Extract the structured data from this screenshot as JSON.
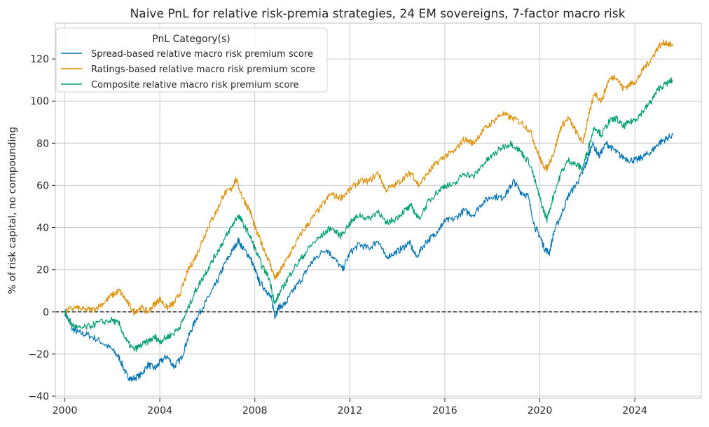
{
  "chart_data": {
    "type": "line",
    "title": "Naive PnL for relative risk-premia strategies, 24 EM sovereigns, 7-factor macro risk",
    "xlabel": "",
    "ylabel": "% of risk capital, no compounding",
    "xlim": [
      1999.6,
      2026.8
    ],
    "ylim": [
      -41,
      137
    ],
    "xticks": [
      2000,
      2004,
      2008,
      2012,
      2016,
      2020,
      2024
    ],
    "xtick_labels": [
      "2000",
      "2004",
      "2008",
      "2012",
      "2016",
      "2020",
      "2024"
    ],
    "yticks": [
      -40,
      -20,
      0,
      20,
      40,
      60,
      80,
      100,
      120
    ],
    "ytick_labels": [
      "−40",
      "−20",
      "0",
      "20",
      "40",
      "60",
      "80",
      "100",
      "120"
    ],
    "grid": true,
    "zero_line": true,
    "legend": {
      "title": "PnL Category(s)",
      "placement": "top-left"
    },
    "series": [
      {
        "name": "Spread-based relative macro risk premium score",
        "color": "#0173b2",
        "points": [
          [
            2000.0,
            0
          ],
          [
            2000.3,
            -8
          ],
          [
            2000.6,
            -10
          ],
          [
            2001.0,
            -11
          ],
          [
            2001.5,
            -14
          ],
          [
            2002.0,
            -18
          ],
          [
            2002.3,
            -22
          ],
          [
            2002.6,
            -30
          ],
          [
            2002.8,
            -32
          ],
          [
            2003.2,
            -30
          ],
          [
            2003.5,
            -25
          ],
          [
            2003.8,
            -27
          ],
          [
            2004.0,
            -24
          ],
          [
            2004.3,
            -21
          ],
          [
            2004.6,
            -26
          ],
          [
            2004.9,
            -22
          ],
          [
            2005.2,
            -12
          ],
          [
            2005.5,
            -4
          ],
          [
            2005.8,
            2
          ],
          [
            2006.1,
            8
          ],
          [
            2006.4,
            14
          ],
          [
            2006.7,
            22
          ],
          [
            2007.0,
            28
          ],
          [
            2007.3,
            34
          ],
          [
            2007.5,
            30
          ],
          [
            2007.8,
            26
          ],
          [
            2008.0,
            20
          ],
          [
            2008.2,
            14
          ],
          [
            2008.5,
            10
          ],
          [
            2008.7,
            6
          ],
          [
            2008.85,
            -2
          ],
          [
            2009.0,
            2
          ],
          [
            2009.3,
            4
          ],
          [
            2009.6,
            10
          ],
          [
            2010.0,
            16
          ],
          [
            2010.3,
            22
          ],
          [
            2010.6,
            26
          ],
          [
            2011.0,
            30
          ],
          [
            2011.3,
            26
          ],
          [
            2011.7,
            20
          ],
          [
            2012.0,
            28
          ],
          [
            2012.4,
            32
          ],
          [
            2012.8,
            30
          ],
          [
            2013.2,
            34
          ],
          [
            2013.5,
            26
          ],
          [
            2013.9,
            28
          ],
          [
            2014.2,
            30
          ],
          [
            2014.5,
            33
          ],
          [
            2014.8,
            26
          ],
          [
            2015.2,
            33
          ],
          [
            2015.5,
            36
          ],
          [
            2015.8,
            40
          ],
          [
            2016.0,
            43
          ],
          [
            2016.4,
            44
          ],
          [
            2016.8,
            48
          ],
          [
            2017.2,
            46
          ],
          [
            2017.6,
            52
          ],
          [
            2018.0,
            55
          ],
          [
            2018.4,
            54
          ],
          [
            2018.7,
            58
          ],
          [
            2018.9,
            62
          ],
          [
            2019.2,
            57
          ],
          [
            2019.5,
            55
          ],
          [
            2019.8,
            40
          ],
          [
            2020.0,
            36
          ],
          [
            2020.2,
            30
          ],
          [
            2020.4,
            28
          ],
          [
            2020.6,
            38
          ],
          [
            2020.9,
            46
          ],
          [
            2021.2,
            55
          ],
          [
            2021.5,
            60
          ],
          [
            2021.8,
            66
          ],
          [
            2022.0,
            72
          ],
          [
            2022.2,
            80
          ],
          [
            2022.5,
            74
          ],
          [
            2022.8,
            80
          ],
          [
            2023.1,
            77
          ],
          [
            2023.4,
            74
          ],
          [
            2023.8,
            72
          ],
          [
            2024.1,
            72
          ],
          [
            2024.4,
            74
          ],
          [
            2024.7,
            76
          ],
          [
            2025.0,
            80
          ],
          [
            2025.3,
            82
          ],
          [
            2025.6,
            84
          ]
        ]
      },
      {
        "name": "Ratings-based relative macro risk premium score",
        "color": "#de8f05",
        "points": [
          [
            2000.0,
            0
          ],
          [
            2000.4,
            2
          ],
          [
            2000.8,
            1
          ],
          [
            2001.2,
            1
          ],
          [
            2001.6,
            4
          ],
          [
            2002.0,
            8
          ],
          [
            2002.3,
            10
          ],
          [
            2002.6,
            5
          ],
          [
            2002.9,
            0
          ],
          [
            2003.2,
            2
          ],
          [
            2003.5,
            0
          ],
          [
            2003.8,
            4
          ],
          [
            2004.0,
            6
          ],
          [
            2004.3,
            2
          ],
          [
            2004.6,
            4
          ],
          [
            2004.9,
            10
          ],
          [
            2005.2,
            20
          ],
          [
            2005.5,
            26
          ],
          [
            2005.8,
            34
          ],
          [
            2006.1,
            42
          ],
          [
            2006.4,
            48
          ],
          [
            2006.7,
            56
          ],
          [
            2007.0,
            58
          ],
          [
            2007.2,
            63
          ],
          [
            2007.5,
            54
          ],
          [
            2007.8,
            48
          ],
          [
            2008.0,
            40
          ],
          [
            2008.3,
            32
          ],
          [
            2008.6,
            24
          ],
          [
            2008.85,
            16
          ],
          [
            2009.0,
            18
          ],
          [
            2009.3,
            24
          ],
          [
            2009.6,
            30
          ],
          [
            2010.0,
            38
          ],
          [
            2010.4,
            44
          ],
          [
            2010.8,
            50
          ],
          [
            2011.2,
            56
          ],
          [
            2011.6,
            54
          ],
          [
            2012.0,
            58
          ],
          [
            2012.4,
            62
          ],
          [
            2012.8,
            62
          ],
          [
            2013.2,
            66
          ],
          [
            2013.5,
            58
          ],
          [
            2013.9,
            60
          ],
          [
            2014.3,
            64
          ],
          [
            2014.6,
            66
          ],
          [
            2014.9,
            60
          ],
          [
            2015.3,
            66
          ],
          [
            2015.6,
            70
          ],
          [
            2016.0,
            74
          ],
          [
            2016.4,
            76
          ],
          [
            2016.8,
            82
          ],
          [
            2017.2,
            80
          ],
          [
            2017.6,
            86
          ],
          [
            2018.0,
            90
          ],
          [
            2018.4,
            94
          ],
          [
            2018.8,
            92
          ],
          [
            2019.2,
            90
          ],
          [
            2019.6,
            86
          ],
          [
            2019.9,
            76
          ],
          [
            2020.1,
            70
          ],
          [
            2020.3,
            68
          ],
          [
            2020.6,
            76
          ],
          [
            2020.9,
            88
          ],
          [
            2021.2,
            92
          ],
          [
            2021.5,
            86
          ],
          [
            2021.8,
            80
          ],
          [
            2022.0,
            90
          ],
          [
            2022.3,
            104
          ],
          [
            2022.6,
            100
          ],
          [
            2022.9,
            110
          ],
          [
            2023.2,
            112
          ],
          [
            2023.5,
            106
          ],
          [
            2023.8,
            108
          ],
          [
            2024.1,
            110
          ],
          [
            2024.4,
            116
          ],
          [
            2024.7,
            120
          ],
          [
            2025.0,
            126
          ],
          [
            2025.3,
            128
          ],
          [
            2025.6,
            126
          ]
        ]
      },
      {
        "name": "Composite relative macro risk premium score",
        "color": "#029e73",
        "points": [
          [
            2000.0,
            0
          ],
          [
            2000.3,
            -6
          ],
          [
            2000.6,
            -8
          ],
          [
            2001.0,
            -7
          ],
          [
            2001.5,
            -5
          ],
          [
            2002.0,
            -4
          ],
          [
            2002.3,
            -6
          ],
          [
            2002.6,
            -14
          ],
          [
            2002.9,
            -18
          ],
          [
            2003.2,
            -16
          ],
          [
            2003.5,
            -14
          ],
          [
            2003.8,
            -12
          ],
          [
            2004.0,
            -14
          ],
          [
            2004.3,
            -12
          ],
          [
            2004.6,
            -10
          ],
          [
            2004.9,
            -6
          ],
          [
            2005.2,
            2
          ],
          [
            2005.5,
            10
          ],
          [
            2005.8,
            16
          ],
          [
            2006.1,
            22
          ],
          [
            2006.4,
            28
          ],
          [
            2006.7,
            34
          ],
          [
            2007.0,
            40
          ],
          [
            2007.3,
            46
          ],
          [
            2007.5,
            42
          ],
          [
            2007.8,
            36
          ],
          [
            2008.0,
            30
          ],
          [
            2008.3,
            22
          ],
          [
            2008.6,
            16
          ],
          [
            2008.85,
            4
          ],
          [
            2009.0,
            8
          ],
          [
            2009.3,
            14
          ],
          [
            2009.6,
            20
          ],
          [
            2010.0,
            26
          ],
          [
            2010.4,
            32
          ],
          [
            2010.8,
            36
          ],
          [
            2011.2,
            40
          ],
          [
            2011.6,
            36
          ],
          [
            2012.0,
            42
          ],
          [
            2012.4,
            46
          ],
          [
            2012.8,
            44
          ],
          [
            2013.2,
            48
          ],
          [
            2013.5,
            42
          ],
          [
            2013.9,
            44
          ],
          [
            2014.3,
            48
          ],
          [
            2014.6,
            50
          ],
          [
            2014.9,
            44
          ],
          [
            2015.3,
            52
          ],
          [
            2015.6,
            56
          ],
          [
            2016.0,
            60
          ],
          [
            2016.4,
            60
          ],
          [
            2016.8,
            66
          ],
          [
            2017.2,
            64
          ],
          [
            2017.6,
            70
          ],
          [
            2018.0,
            74
          ],
          [
            2018.4,
            78
          ],
          [
            2018.8,
            80
          ],
          [
            2019.2,
            76
          ],
          [
            2019.6,
            70
          ],
          [
            2019.9,
            58
          ],
          [
            2020.1,
            50
          ],
          [
            2020.3,
            44
          ],
          [
            2020.6,
            56
          ],
          [
            2020.9,
            66
          ],
          [
            2021.2,
            72
          ],
          [
            2021.5,
            70
          ],
          [
            2021.8,
            68
          ],
          [
            2022.0,
            76
          ],
          [
            2022.3,
            88
          ],
          [
            2022.6,
            84
          ],
          [
            2022.9,
            90
          ],
          [
            2023.2,
            92
          ],
          [
            2023.5,
            88
          ],
          [
            2023.8,
            90
          ],
          [
            2024.1,
            92
          ],
          [
            2024.4,
            96
          ],
          [
            2024.7,
            100
          ],
          [
            2025.0,
            106
          ],
          [
            2025.3,
            108
          ],
          [
            2025.6,
            110
          ]
        ]
      }
    ]
  }
}
